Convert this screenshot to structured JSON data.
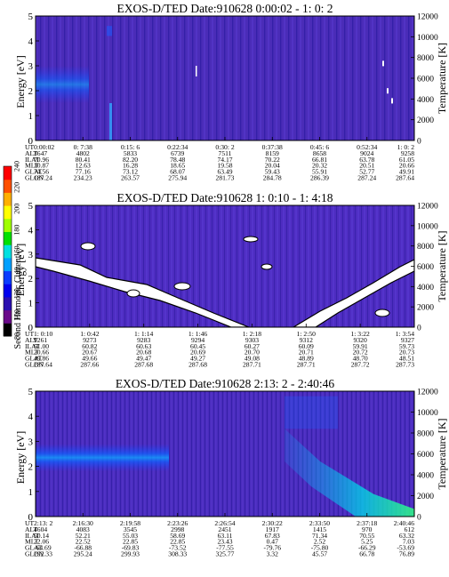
{
  "colorbar": {
    "label": "Second Harmonic Current",
    "ticks": [
      "80",
      "100",
      "120",
      "140",
      "160",
      "180",
      "200",
      "220",
      "240"
    ],
    "colors": [
      "#000000",
      "#6a0a8a",
      "#2a0fb0",
      "#0000ee",
      "#0a3cff",
      "#00a0ff",
      "#00e0e0",
      "#00e000",
      "#a0ff00",
      "#ffff00",
      "#ffb000",
      "#ff5000",
      "#ff0000"
    ]
  },
  "row_labels": [
    "UT",
    "ALT",
    "ILAT",
    "MLT",
    "GLAT",
    "GLON"
  ],
  "chart_data": [
    {
      "type": "heatmap",
      "title": "EXOS-D/TED   Date:910628   0:00:02 - 1: 0: 2",
      "ylabel": "Energy [eV]",
      "y2label": "Temperature [K]",
      "ylim": [
        0,
        5
      ],
      "y2lim": [
        0,
        12000
      ],
      "yticks": [
        "0",
        "1",
        "2",
        "3",
        "4",
        "5"
      ],
      "y2ticks": [
        "0",
        "2000",
        "4000",
        "6000",
        "8000",
        "10000",
        "12000"
      ],
      "rows": [
        [
          "0:00:02",
          "0: 7:38",
          "0:15: 6",
          "0:22:34",
          "0:30: 2",
          "0:37:38",
          "0:45: 6",
          "0:52:34",
          "1: 0: 2"
        ],
        [
          "3647",
          "4802",
          "5833",
          "6739",
          "7511",
          "8159",
          "8658",
          "9024",
          "9258"
        ],
        [
          "70.96",
          "80.41",
          "82.20",
          "78.48",
          "74.17",
          "70.22",
          "66.81",
          "63.78",
          "61.05"
        ],
        [
          "10.87",
          "12.63",
          "16.28",
          "18.65",
          "19.58",
          "20.04",
          "20.32",
          "20.51",
          "20.66"
        ],
        [
          "74.56",
          "77.16",
          "73.12",
          "68.07",
          "63.49",
          "59.43",
          "55.91",
          "52.77",
          "49.91"
        ],
        [
          "187.24",
          "234.23",
          "263.57",
          "275.94",
          "281.73",
          "284.78",
          "286.39",
          "287.24",
          "287.64"
        ]
      ]
    },
    {
      "type": "heatmap",
      "title": "EXOS-D/TED   Date:910628   1: 0:10 - 1: 4:18",
      "ylabel": "Energy [eV]",
      "y2label": "Temperature [K]",
      "ylim": [
        0,
        5
      ],
      "y2lim": [
        0,
        12000
      ],
      "yticks": [
        "0",
        "1",
        "2",
        "3",
        "4",
        "5"
      ],
      "y2ticks": [
        "0",
        "2000",
        "4000",
        "6000",
        "8000",
        "10000",
        "12000"
      ],
      "rows": [
        [
          "1: 0:10",
          "1: 0:42",
          "1: 1:14",
          "1: 1:46",
          "1: 2:18",
          "1: 2:50",
          "1: 3:22",
          "1: 3:54"
        ],
        [
          "9261",
          "9273",
          "9283",
          "9294",
          "9303",
          "9312",
          "9320",
          "9327"
        ],
        [
          "61.00",
          "60.82",
          "60.63",
          "60.45",
          "60.27",
          "60.09",
          "59.91",
          "59.73"
        ],
        [
          "20.66",
          "20.67",
          "20.68",
          "20.69",
          "20.70",
          "20.71",
          "20.72",
          "20.73"
        ],
        [
          "49.86",
          "49.66",
          "49.47",
          "49.27",
          "49.08",
          "48.89",
          "48.70",
          "48.51"
        ],
        [
          "287.64",
          "287.66",
          "287.68",
          "287.68",
          "287.71",
          "287.71",
          "287.72",
          "287.73"
        ]
      ]
    },
    {
      "type": "heatmap",
      "title": "EXOS-D/TED   Date:910628   2:13: 2 - 2:40:46",
      "ylabel": "Energy [eV]",
      "y2label": "Temperature [K]",
      "ylim": [
        0,
        5
      ],
      "y2lim": [
        0,
        12000
      ],
      "yticks": [
        "0",
        "1",
        "2",
        "3",
        "4",
        "5"
      ],
      "y2ticks": [
        "0",
        "2000",
        "4000",
        "6000",
        "8000",
        "10000",
        "12000"
      ],
      "rows": [
        [
          "2:13: 2",
          "2:16:30",
          "2:19:58",
          "2:23:26",
          "2:26:54",
          "2:30:22",
          "2:33:50",
          "2:37:18",
          "2:40:46"
        ],
        [
          "4604",
          "4083",
          "3545",
          "2998",
          "2451",
          "1917",
          "1415",
          "970",
          "612"
        ],
        [
          "50.14",
          "52.21",
          "55.03",
          "58.69",
          "63.11",
          "67.83",
          "71.34",
          "70.55",
          "63.32"
        ],
        [
          "22.06",
          "22.52",
          "22.85",
          "22.85",
          "23.43",
          "0.47",
          "2.52",
          "5.25",
          "7.03"
        ],
        [
          "-64.69",
          "-66.88",
          "-69.83",
          "-73.52",
          "-77.55",
          "-79.76",
          "-75.80",
          "-66.29",
          "-53.69"
        ],
        [
          "292.33",
          "295.24",
          "299.93",
          "308.33",
          "325.77",
          "3.32",
          "45.57",
          "66.78",
          "76.89"
        ]
      ]
    }
  ]
}
